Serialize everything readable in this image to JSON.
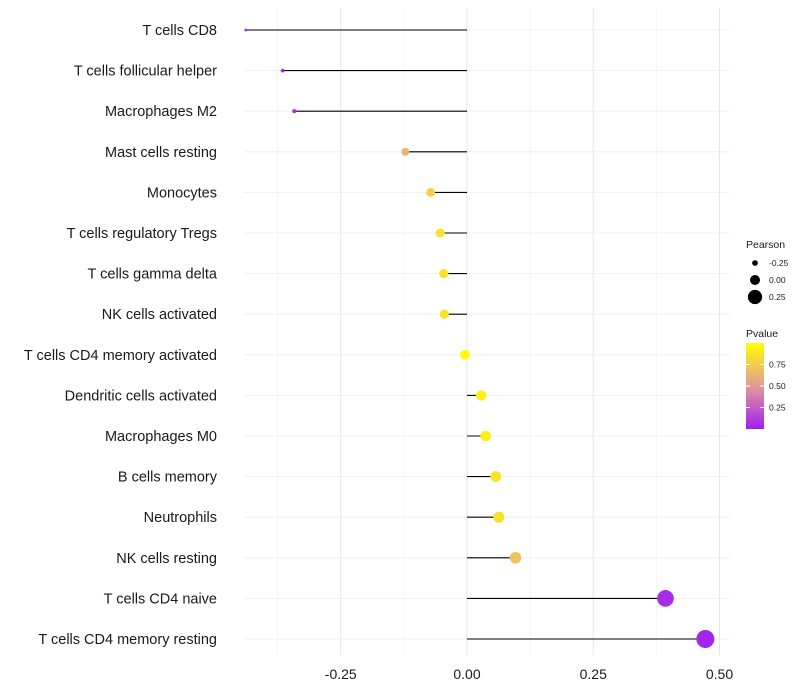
{
  "chart_data": {
    "type": "lollipop",
    "title": "",
    "xlabel": "",
    "ylabel": "",
    "xlim": [
      -0.44,
      0.52
    ],
    "xticks": [
      -0.25,
      0.0,
      0.25,
      0.5
    ],
    "xtick_labels": [
      "-0.25",
      "0.00",
      "0.25",
      "0.50"
    ],
    "grid": true,
    "categories": [
      "T cells CD8",
      "T cells follicular helper",
      "Macrophages M2",
      "Mast cells resting",
      "Monocytes",
      "T cells regulatory  Tregs ",
      "T cells gamma delta",
      "NK cells activated",
      "T cells CD4 memory activated",
      "Dendritic cells activated",
      "Macrophages M0",
      "B cells memory",
      "Neutrophils",
      "NK cells resting",
      "T cells CD4 naive",
      "T cells CD4 memory resting"
    ],
    "pearson": [
      -0.438,
      -0.365,
      -0.342,
      -0.122,
      -0.072,
      -0.053,
      -0.046,
      -0.045,
      -0.004,
      0.028,
      0.037,
      0.057,
      0.063,
      0.096,
      0.393,
      0.472
    ],
    "pvalue": [
      0.01,
      0.04,
      0.05,
      0.62,
      0.78,
      0.86,
      0.86,
      0.87,
      0.98,
      0.93,
      0.92,
      0.86,
      0.85,
      0.7,
      0.05,
      0.02
    ],
    "legend": {
      "placement": "right",
      "size_title": "Pearson",
      "size_values": [
        -0.25,
        0.0,
        0.25
      ],
      "size_labels": [
        "-0.25",
        "0.00",
        "0.25"
      ],
      "color_title": "Pvalue",
      "color_values": [
        0.25,
        0.5,
        0.75
      ],
      "color_labels": [
        "0.25",
        "0.50",
        "0.75"
      ],
      "color_range": [
        0.0,
        1.0
      ],
      "color_low": "#a020f0",
      "color_mid": "#e39a9a",
      "color_high": "#ffff00"
    }
  }
}
